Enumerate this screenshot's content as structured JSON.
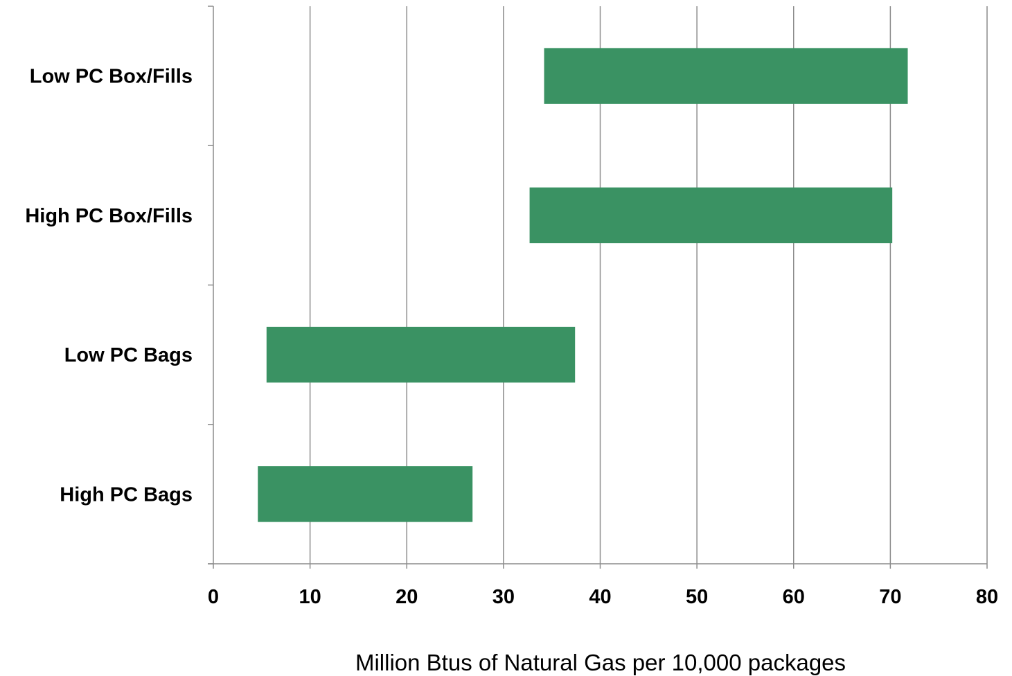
{
  "chart_data": {
    "type": "bar",
    "orientation": "horizontal",
    "style": "floating-range",
    "categories": [
      "Low PC Box/Fills",
      "High PC Box/Fills",
      "Low PC Bags",
      "High PC Bags"
    ],
    "series": [
      {
        "ranges": [
          [
            34.2,
            71.8
          ],
          [
            32.7,
            70.2
          ],
          [
            5.5,
            37.4
          ],
          [
            4.6,
            26.8
          ]
        ]
      }
    ],
    "title": "",
    "xlabel": "Million Btus of Natural Gas per 10,000 packages",
    "ylabel": "",
    "xlim": [
      0,
      80
    ],
    "xticks": [
      0,
      10,
      20,
      30,
      40,
      50,
      60,
      70,
      80
    ],
    "grid": "vertical",
    "legend": "none",
    "bar_color": "#3a9263",
    "grid_color": "#8c8c8c",
    "axis_color": "#8c8c8c"
  }
}
